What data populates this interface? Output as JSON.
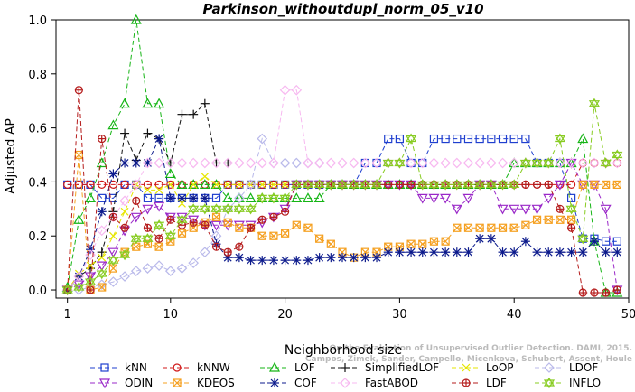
{
  "chart_data": {
    "type": "line",
    "title": "Parkinson_withoutdupl_norm_05_v10",
    "xlabel": "Neighborhood size",
    "ylabel": "Adjusted AP",
    "xlim": [
      0,
      50
    ],
    "ylim": [
      -0.03,
      1.0
    ],
    "xticks": [
      "1",
      "10",
      "20",
      "30",
      "40",
      "50"
    ],
    "yticks": [
      "0.0",
      "0.2",
      "0.4",
      "0.6",
      "0.8",
      "1.0"
    ],
    "grid": false,
    "legend_position": "bottom",
    "watermark": "Campos, Zimek, Sander, Campello, Micenkova, Schubert, Assent, Houle\nOn the Evaluation of Unsupervised Outlier Detection. DAMI, 2015.",
    "series": [
      {
        "name": "kNN",
        "color": "#1f3fcf",
        "dash": "5,3",
        "marker": "square",
        "x": [
          1,
          2,
          3,
          4,
          5,
          6,
          7,
          8,
          9,
          10,
          11,
          12,
          13,
          14,
          15,
          16,
          17,
          18,
          19,
          20,
          21,
          22,
          23,
          24,
          25,
          26,
          27,
          28,
          29,
          30,
          31,
          32,
          33,
          34,
          35,
          36,
          37,
          38,
          39,
          40,
          41,
          42,
          43,
          44,
          45,
          46,
          47,
          48,
          49
        ],
        "y": [
          0.39,
          0.39,
          0.39,
          0.34,
          0.34,
          0.39,
          0.39,
          0.34,
          0.34,
          0.34,
          0.34,
          0.34,
          0.34,
          0.34,
          0.39,
          0.39,
          0.39,
          0.39,
          0.39,
          0.39,
          0.39,
          0.39,
          0.39,
          0.39,
          0.39,
          0.39,
          0.47,
          0.47,
          0.56,
          0.56,
          0.47,
          0.47,
          0.56,
          0.56,
          0.56,
          0.56,
          0.56,
          0.56,
          0.56,
          0.56,
          0.56,
          0.47,
          0.47,
          0.47,
          0.34,
          0.19,
          0.19,
          0.18,
          0.18
        ]
      },
      {
        "name": "kNNW",
        "color": "#d01818",
        "dash": "5,3",
        "marker": "circle",
        "x": [
          1,
          2,
          3,
          4,
          5,
          6,
          7,
          8,
          9,
          10,
          11,
          12,
          13,
          14,
          15,
          16,
          17,
          18,
          19,
          20,
          21,
          22,
          23,
          24,
          25,
          26,
          27,
          28,
          29,
          30,
          31,
          32,
          33,
          34,
          35,
          36,
          37,
          38,
          39,
          40,
          41,
          42,
          43,
          44,
          45,
          46,
          47,
          48,
          49
        ],
        "y": [
          0.39,
          0.39,
          0.39,
          0.39,
          0.39,
          0.39,
          0.39,
          0.39,
          0.39,
          0.39,
          0.39,
          0.39,
          0.39,
          0.39,
          0.39,
          0.39,
          0.39,
          0.39,
          0.39,
          0.39,
          0.39,
          0.39,
          0.39,
          0.39,
          0.39,
          0.39,
          0.39,
          0.39,
          0.39,
          0.39,
          0.39,
          0.39,
          0.39,
          0.39,
          0.39,
          0.39,
          0.39,
          0.39,
          0.39,
          0.39,
          0.39,
          0.39,
          0.39,
          0.39,
          0.39,
          0.47,
          0.47,
          0.47,
          0.47
        ]
      },
      {
        "name": "LOF",
        "color": "#16b516",
        "dash": "5,3",
        "marker": "triangle",
        "x": [
          1,
          2,
          3,
          4,
          5,
          6,
          7,
          8,
          9,
          10,
          11,
          12,
          13,
          14,
          15,
          16,
          17,
          18,
          19,
          20,
          21,
          22,
          23,
          24,
          25,
          26,
          27,
          28,
          29,
          30,
          31,
          32,
          33,
          34,
          35,
          36,
          37,
          38,
          39,
          40,
          41,
          42,
          43,
          44,
          45,
          46,
          47,
          48,
          49
        ],
        "y": [
          0.01,
          0.26,
          0.34,
          0.47,
          0.61,
          0.69,
          1.0,
          0.69,
          0.69,
          0.43,
          0.39,
          0.39,
          0.39,
          0.39,
          0.34,
          0.34,
          0.34,
          0.34,
          0.34,
          0.34,
          0.34,
          0.34,
          0.34,
          0.39,
          0.39,
          0.39,
          0.39,
          0.39,
          0.39,
          0.39,
          0.39,
          0.39,
          0.39,
          0.39,
          0.39,
          0.39,
          0.39,
          0.39,
          0.39,
          0.47,
          0.47,
          0.47,
          0.47,
          0.47,
          0.47,
          0.56,
          0.18,
          -0.01,
          -0.01
        ]
      },
      {
        "name": "SimplifiedLOF",
        "color": "#111111",
        "dash": "5,3",
        "marker": "plus",
        "x": [
          1,
          2,
          3,
          4,
          5,
          6,
          7,
          8,
          9,
          10,
          11,
          12,
          13,
          14,
          15
        ],
        "y": [
          0.0,
          0.05,
          0.08,
          0.14,
          0.29,
          0.58,
          0.48,
          0.58,
          0.56,
          0.47,
          0.65,
          0.65,
          0.69,
          0.47,
          0.47
        ]
      },
      {
        "name": "LoOP",
        "color": "#e6e600",
        "dash": "5,3",
        "marker": "x",
        "x": [
          1,
          2,
          3,
          4,
          5,
          6,
          7,
          8,
          9,
          10,
          11,
          12,
          13,
          14,
          15,
          16,
          17,
          18,
          19,
          20
        ],
        "y": [
          0.0,
          0.06,
          0.09,
          0.12,
          0.2,
          0.29,
          0.39,
          0.37,
          0.37,
          0.39,
          0.32,
          0.39,
          0.42,
          0.39,
          0.39,
          0.39,
          0.39,
          0.39,
          0.39,
          0.39
        ]
      },
      {
        "name": "LDOF",
        "color": "#b9b9ea",
        "dash": "5,3",
        "marker": "diamond",
        "x": [
          1,
          2,
          3,
          4,
          5,
          6,
          7,
          8,
          9,
          10,
          11,
          12,
          13,
          14,
          15,
          16,
          17,
          18,
          19,
          20,
          21,
          22,
          23
        ],
        "y": [
          0.0,
          0.0,
          0.01,
          0.02,
          0.03,
          0.05,
          0.07,
          0.08,
          0.09,
          0.07,
          0.08,
          0.1,
          0.14,
          0.2,
          0.3,
          0.34,
          0.39,
          0.56,
          0.47,
          0.47,
          0.47,
          0.47,
          0.47
        ]
      },
      {
        "name": "ODIN",
        "color": "#9a28c8",
        "dash": "5,3",
        "marker": "triangle-down",
        "x": [
          1,
          2,
          3,
          4,
          5,
          6,
          7,
          8,
          9,
          10,
          11,
          12,
          13,
          14,
          15,
          16,
          17,
          18,
          19,
          20,
          21,
          22,
          23,
          24,
          25,
          26,
          27,
          28,
          29,
          30,
          31,
          32,
          33,
          34,
          35,
          36,
          37,
          38,
          39,
          40,
          41,
          42,
          43,
          44,
          45,
          46,
          47,
          48,
          49
        ],
        "y": [
          0.0,
          0.02,
          0.05,
          0.09,
          0.14,
          0.22,
          0.27,
          0.3,
          0.31,
          0.27,
          0.27,
          0.26,
          0.24,
          0.24,
          0.24,
          0.24,
          0.24,
          0.25,
          0.27,
          0.3,
          0.39,
          0.39,
          0.39,
          0.39,
          0.39,
          0.39,
          0.39,
          0.39,
          0.39,
          0.39,
          0.39,
          0.34,
          0.34,
          0.34,
          0.3,
          0.34,
          0.39,
          0.39,
          0.3,
          0.3,
          0.3,
          0.3,
          0.34,
          0.39,
          0.47,
          0.39,
          0.39,
          0.3,
          0.0
        ]
      },
      {
        "name": "KDEOS",
        "color": "#f5a020",
        "dash": "5,3",
        "marker": "square-x",
        "x": [
          1,
          2,
          3,
          4,
          5,
          6,
          7,
          8,
          9,
          10,
          11,
          12,
          13,
          14,
          15,
          16,
          17,
          18,
          19,
          20,
          21,
          22,
          23,
          24,
          25,
          26,
          27,
          28,
          29,
          30,
          31,
          32,
          33,
          34,
          35,
          36,
          37,
          38,
          39,
          40,
          41,
          42,
          43,
          44,
          45,
          46,
          47,
          48,
          49
        ],
        "y": [
          0.0,
          0.5,
          0.0,
          0.01,
          0.08,
          0.14,
          0.16,
          0.17,
          0.16,
          0.18,
          0.21,
          0.23,
          0.25,
          0.27,
          0.25,
          0.23,
          0.23,
          0.2,
          0.2,
          0.21,
          0.24,
          0.23,
          0.19,
          0.17,
          0.14,
          0.12,
          0.14,
          0.14,
          0.16,
          0.16,
          0.17,
          0.17,
          0.18,
          0.18,
          0.23,
          0.23,
          0.23,
          0.23,
          0.23,
          0.23,
          0.24,
          0.26,
          0.26,
          0.26,
          0.26,
          0.39,
          0.39,
          0.39,
          0.39
        ]
      },
      {
        "name": "COF",
        "color": "#0c1a8c",
        "dash": "5,3",
        "marker": "asterisk",
        "x": [
          1,
          2,
          3,
          4,
          5,
          6,
          7,
          8,
          9,
          10,
          11,
          12,
          13,
          14,
          15,
          16,
          17,
          18,
          19,
          20,
          21,
          22,
          23,
          24,
          25,
          26,
          27,
          28,
          29,
          30,
          31,
          32,
          33,
          34,
          35,
          36,
          37,
          38,
          39,
          40,
          41,
          42,
          43,
          44,
          45,
          46,
          47,
          48,
          49
        ],
        "y": [
          0.0,
          0.05,
          0.15,
          0.29,
          0.43,
          0.47,
          0.47,
          0.47,
          0.56,
          0.34,
          0.34,
          0.34,
          0.34,
          0.17,
          0.12,
          0.12,
          0.11,
          0.11,
          0.11,
          0.11,
          0.11,
          0.11,
          0.12,
          0.12,
          0.12,
          0.12,
          0.12,
          0.12,
          0.14,
          0.14,
          0.14,
          0.14,
          0.14,
          0.14,
          0.14,
          0.14,
          0.19,
          0.19,
          0.14,
          0.14,
          0.18,
          0.14,
          0.14,
          0.14,
          0.14,
          0.14,
          0.18,
          0.14,
          0.14
        ]
      },
      {
        "name": "FastABOD",
        "color": "#f7b8f0",
        "dash": "5,3",
        "marker": "diamond",
        "x": [
          1,
          2,
          3,
          4,
          5,
          6,
          7,
          8,
          9,
          10,
          11,
          12,
          13,
          14,
          15,
          16,
          17,
          18,
          19,
          20,
          21,
          22,
          23,
          24,
          25,
          26,
          27,
          28,
          29,
          30,
          31,
          32,
          33,
          34,
          35,
          36,
          37,
          38,
          39,
          40,
          41,
          42,
          43,
          44,
          45,
          46,
          47,
          48,
          49
        ],
        "y": [
          0.0,
          0.05,
          0.13,
          0.22,
          0.27,
          0.33,
          0.39,
          0.47,
          0.47,
          0.47,
          0.47,
          0.47,
          0.47,
          0.47,
          0.47,
          0.47,
          0.47,
          0.47,
          0.47,
          0.74,
          0.74,
          0.47,
          0.47,
          0.47,
          0.47,
          0.47,
          0.47,
          0.47,
          0.47,
          0.47,
          0.47,
          0.47,
          0.47,
          0.47,
          0.47,
          0.47,
          0.47,
          0.47,
          0.47,
          0.47,
          0.47,
          0.47,
          0.47,
          0.47,
          0.47,
          0.47,
          0.47,
          0.47,
          0.47
        ]
      },
      {
        "name": "LDF",
        "color": "#b51c1c",
        "dash": "5,3",
        "marker": "circle-plus",
        "x": [
          1,
          2,
          3,
          4,
          5,
          6,
          7,
          8,
          9,
          10,
          11,
          12,
          13,
          14,
          15,
          16,
          17,
          18,
          19,
          20,
          21,
          22,
          23,
          24,
          25,
          26,
          27,
          28,
          29,
          30,
          31,
          32,
          33,
          34,
          35,
          36,
          37,
          38,
          39,
          40,
          41,
          42,
          43,
          44,
          45,
          46,
          47,
          48,
          49
        ],
        "y": [
          0.0,
          0.74,
          0.0,
          0.56,
          0.27,
          0.23,
          0.33,
          0.23,
          0.19,
          0.26,
          0.24,
          0.25,
          0.24,
          0.16,
          0.14,
          0.16,
          0.23,
          0.26,
          0.27,
          0.29,
          0.39,
          0.39,
          0.39,
          0.39,
          0.39,
          0.39,
          0.39,
          0.39,
          0.39,
          0.39,
          0.39,
          0.39,
          0.39,
          0.39,
          0.39,
          0.39,
          0.39,
          0.39,
          0.39,
          0.39,
          0.39,
          0.39,
          0.39,
          0.3,
          0.23,
          -0.01,
          -0.01,
          -0.01,
          0.0
        ]
      },
      {
        "name": "INFLO",
        "color": "#88cc22",
        "dash": "5,3",
        "marker": "star",
        "x": [
          1,
          2,
          3,
          4,
          5,
          6,
          7,
          8,
          9,
          10,
          11,
          12,
          13,
          14,
          15,
          16,
          17,
          18,
          19,
          20,
          21,
          22,
          23,
          24,
          25,
          26,
          27,
          28,
          29,
          30,
          31,
          32,
          33,
          34,
          35,
          36,
          37,
          38,
          39,
          40,
          41,
          42,
          43,
          44,
          45,
          46,
          47,
          48,
          49
        ],
        "y": [
          0.0,
          0.01,
          0.03,
          0.06,
          0.11,
          0.13,
          0.19,
          0.19,
          0.24,
          0.2,
          0.26,
          0.3,
          0.3,
          0.3,
          0.3,
          0.3,
          0.3,
          0.34,
          0.34,
          0.34,
          0.39,
          0.39,
          0.39,
          0.39,
          0.39,
          0.39,
          0.39,
          0.39,
          0.47,
          0.47,
          0.56,
          0.39,
          0.39,
          0.39,
          0.39,
          0.39,
          0.39,
          0.39,
          0.39,
          0.39,
          0.47,
          0.47,
          0.47,
          0.56,
          0.3,
          0.19,
          0.69,
          0.47,
          0.5
        ]
      }
    ]
  }
}
